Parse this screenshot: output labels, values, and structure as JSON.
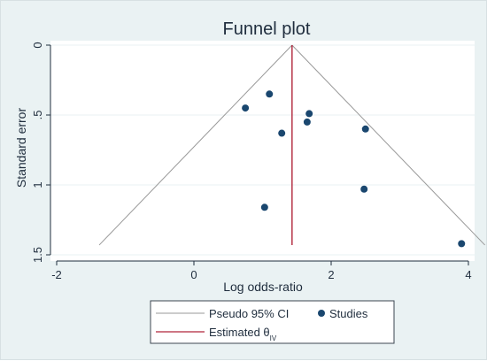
{
  "chart_data": {
    "type": "scatter",
    "title": "Funnel plot",
    "xlabel": "Log odds-ratio",
    "ylabel": "Standard error",
    "xlim": [
      -2,
      4
    ],
    "ylim": [
      0,
      1.5
    ],
    "y_reversed": true,
    "x_ticks": [
      -2,
      0,
      2,
      4
    ],
    "y_ticks": [
      0,
      0.5,
      1,
      1.5
    ],
    "x_tick_labels": [
      "-2",
      "0",
      "2",
      "4"
    ],
    "y_tick_labels": [
      "0",
      ".5",
      "1",
      "1.5"
    ],
    "grid": "horizontal",
    "legend_position": "bottom",
    "estimate": 1.43,
    "pseudo_ci": {
      "top": [
        1.43,
        0
      ],
      "left_bottom": [
        -1.38,
        1.43
      ],
      "right_bottom": [
        4.24,
        1.43
      ]
    },
    "series": [
      {
        "name": "Studies",
        "points": [
          {
            "x": 1.1,
            "y": 0.35
          },
          {
            "x": 0.75,
            "y": 0.45
          },
          {
            "x": 1.68,
            "y": 0.49
          },
          {
            "x": 1.65,
            "y": 0.55
          },
          {
            "x": 1.28,
            "y": 0.63
          },
          {
            "x": 2.5,
            "y": 0.6
          },
          {
            "x": 2.48,
            "y": 1.03
          },
          {
            "x": 1.03,
            "y": 1.16
          },
          {
            "x": 3.9,
            "y": 1.42
          }
        ]
      }
    ],
    "legend": {
      "ci_label": "Pseudo 95% CI",
      "studies_label": "Studies",
      "estimate_label": "Estimated θ",
      "estimate_subscript": "IV"
    }
  },
  "colors": {
    "plot_bg": "#ffffff",
    "outer_bg": "#eaf2f3",
    "ci_line": "#9a9a9a",
    "estimate_line": "#b0253a",
    "point": "#1a476f",
    "grid": "#eaf2f3",
    "axis": "#1f2d3d"
  }
}
